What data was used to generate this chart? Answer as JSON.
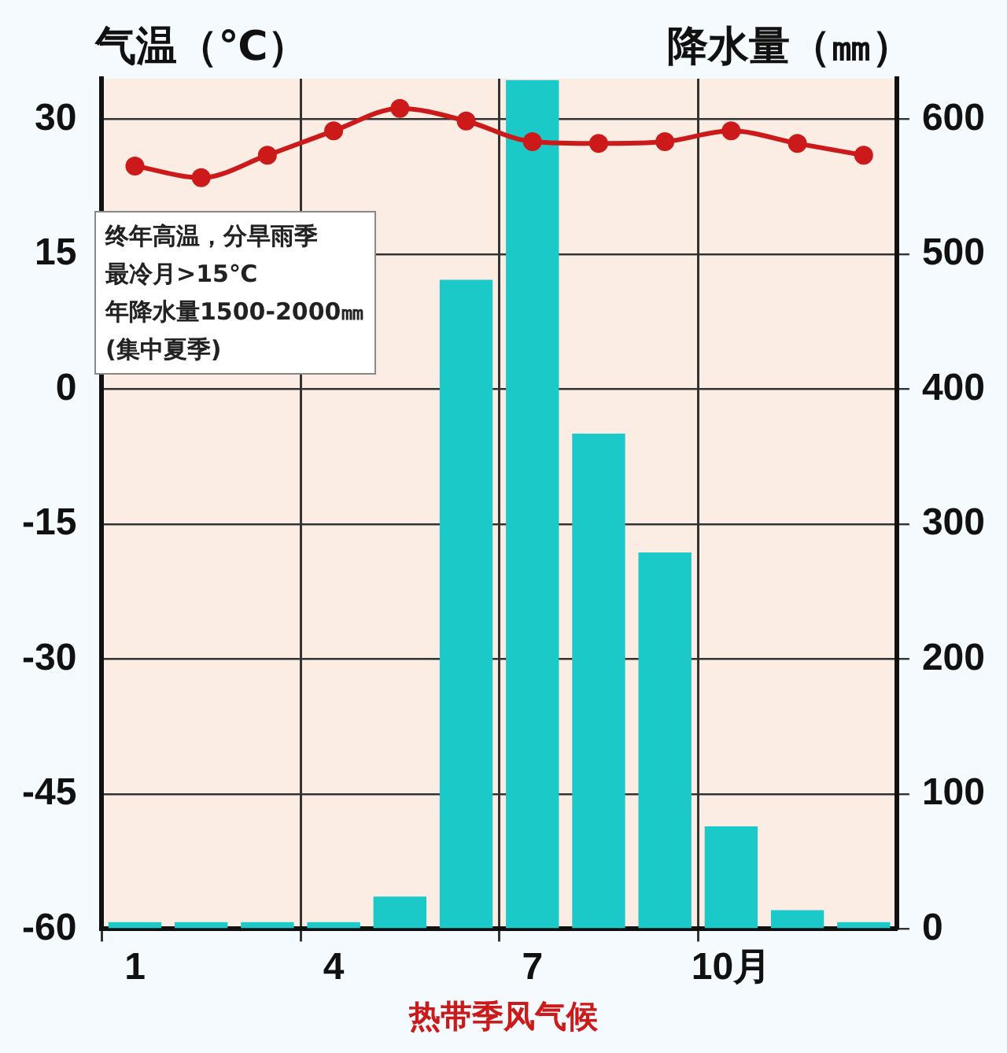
{
  "chart_data": {
    "type": "bar",
    "title": "热带季风气候",
    "ylabel": "气温（℃）",
    "y2label": "降水量（㎜）",
    "categories": [
      "1",
      null,
      null,
      "4",
      null,
      null,
      "7",
      null,
      null,
      "10月",
      null,
      null
    ],
    "series": [
      {
        "axis": "y2",
        "color": "#1cc9c9",
        "values": [
          5,
          5,
          5,
          5,
          24,
          481,
          629,
          367,
          279,
          76,
          14,
          5
        ]
      },
      {
        "type": "line",
        "color": "#cc1a1a",
        "values": [
          24.8,
          23.5,
          26,
          28.7,
          31.2,
          29.8,
          27.5,
          27.3,
          27.5,
          28.7,
          27.3,
          26
        ]
      }
    ],
    "ylim": [
      -60,
      34.5
    ],
    "yticks": [
      -60,
      -45,
      -30,
      -15,
      0,
      15,
      30
    ],
    "y2lim": [
      0,
      630
    ],
    "y2ticks": [
      0,
      100,
      200,
      300,
      400,
      500,
      600
    ],
    "grid": true,
    "legend": false,
    "marker": "circle",
    "line_style": "solid",
    "annotations": [
      "终年高温，分旱雨季",
      "最冷月>15℃",
      "年降水量1500-2000㎜",
      "(集中夏季)"
    ]
  }
}
